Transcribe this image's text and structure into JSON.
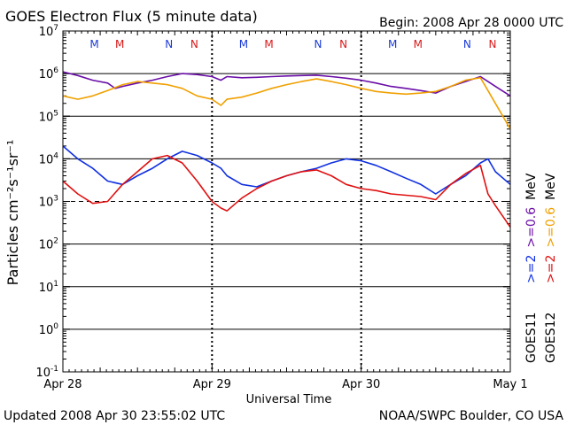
{
  "header": {
    "title": "GOES Electron Flux (5 minute data)",
    "begin": "Begin: 2008 Apr 28 0000 UTC"
  },
  "footer": {
    "updated": "Updated 2008 Apr 30 23:55:02 UTC",
    "credit": "NOAA/SWPC Boulder, CO USA"
  },
  "colors": {
    "goes11_06": "#6a0ea8",
    "goes12_06": "#f0a000",
    "goes11_2": "#1030e0",
    "goes12_2": "#e01010",
    "mn_goes11": "#1a3ad8",
    "mn_goes12": "#d81a1a",
    "axis": "#000000"
  },
  "right_labels": {
    "goes11": "GOES11",
    "goes12": "GOES12",
    "ch_2_prefix": ">=2",
    "ch_06_prefix": ">=0.6",
    "unit": "MeV"
  },
  "chart_data": {
    "type": "line",
    "ylabel": "Particles cm⁻²s⁻¹sr⁻¹",
    "xlabel": "Universal Time",
    "y_scale": "log",
    "ylim": [
      0.1,
      10000000
    ],
    "y_ticks": [
      {
        "base": "10",
        "exp": "-1"
      },
      {
        "base": "10",
        "exp": "0"
      },
      {
        "base": "10",
        "exp": "1"
      },
      {
        "base": "10",
        "exp": "2"
      },
      {
        "base": "10",
        "exp": "3"
      },
      {
        "base": "10",
        "exp": "4"
      },
      {
        "base": "10",
        "exp": "5"
      },
      {
        "base": "10",
        "exp": "6"
      },
      {
        "base": "10",
        "exp": "7"
      }
    ],
    "xlim_days": [
      0,
      3
    ],
    "x_ticks": [
      {
        "day": 0,
        "label": "Apr 28"
      },
      {
        "day": 1,
        "label": "Apr 29"
      },
      {
        "day": 2,
        "label": "Apr 30"
      },
      {
        "day": 3,
        "label": "May 1"
      }
    ],
    "threshold": 1000,
    "mn_markers": [
      {
        "day": 0.33,
        "letter": "M",
        "sat": "goes11"
      },
      {
        "day": 0.5,
        "letter": "M",
        "sat": "goes12"
      },
      {
        "day": 0.83,
        "letter": "N",
        "sat": "goes11"
      },
      {
        "day": 1.0,
        "letter": "N",
        "sat": "goes12"
      },
      {
        "day": 1.33,
        "letter": "M",
        "sat": "goes11"
      },
      {
        "day": 1.5,
        "letter": "M",
        "sat": "goes12"
      },
      {
        "day": 1.83,
        "letter": "N",
        "sat": "goes11"
      },
      {
        "day": 2.0,
        "letter": "N",
        "sat": "goes12"
      },
      {
        "day": 2.33,
        "letter": "M",
        "sat": "goes11"
      },
      {
        "day": 2.5,
        "letter": "M",
        "sat": "goes12"
      },
      {
        "day": 2.83,
        "letter": "N",
        "sat": "goes11"
      },
      {
        "day": 3.0,
        "letter": "N",
        "sat": "goes12"
      }
    ],
    "series": [
      {
        "name": "GOES11 >=0.6 MeV",
        "color_key": "goes11_06",
        "points": [
          [
            0,
            1100000
          ],
          [
            0.1,
            900000
          ],
          [
            0.2,
            700000
          ],
          [
            0.3,
            600000
          ],
          [
            0.35,
            450000
          ],
          [
            0.4,
            500000
          ],
          [
            0.5,
            600000
          ],
          [
            0.6,
            700000
          ],
          [
            0.7,
            850000
          ],
          [
            0.8,
            1000000
          ],
          [
            0.9,
            950000
          ],
          [
            1.0,
            850000
          ],
          [
            1.06,
            700000
          ],
          [
            1.1,
            850000
          ],
          [
            1.2,
            800000
          ],
          [
            1.3,
            820000
          ],
          [
            1.4,
            850000
          ],
          [
            1.5,
            880000
          ],
          [
            1.6,
            900000
          ],
          [
            1.7,
            920000
          ],
          [
            1.8,
            850000
          ],
          [
            1.9,
            780000
          ],
          [
            2.0,
            700000
          ],
          [
            2.1,
            600000
          ],
          [
            2.2,
            500000
          ],
          [
            2.3,
            450000
          ],
          [
            2.4,
            400000
          ],
          [
            2.5,
            350000
          ],
          [
            2.6,
            500000
          ],
          [
            2.7,
            650000
          ],
          [
            2.8,
            850000
          ],
          [
            2.85,
            650000
          ],
          [
            2.9,
            500000
          ],
          [
            3.0,
            300000
          ]
        ]
      },
      {
        "name": "GOES12 >=0.6 MeV",
        "color_key": "goes12_06",
        "points": [
          [
            0,
            300000
          ],
          [
            0.1,
            250000
          ],
          [
            0.2,
            300000
          ],
          [
            0.3,
            400000
          ],
          [
            0.4,
            550000
          ],
          [
            0.5,
            650000
          ],
          [
            0.6,
            600000
          ],
          [
            0.7,
            550000
          ],
          [
            0.8,
            450000
          ],
          [
            0.9,
            300000
          ],
          [
            1.0,
            250000
          ],
          [
            1.06,
            180000
          ],
          [
            1.1,
            250000
          ],
          [
            1.2,
            280000
          ],
          [
            1.3,
            350000
          ],
          [
            1.4,
            450000
          ],
          [
            1.5,
            550000
          ],
          [
            1.6,
            650000
          ],
          [
            1.7,
            750000
          ],
          [
            1.8,
            650000
          ],
          [
            1.9,
            550000
          ],
          [
            2.0,
            450000
          ],
          [
            2.1,
            380000
          ],
          [
            2.2,
            350000
          ],
          [
            2.3,
            330000
          ],
          [
            2.4,
            350000
          ],
          [
            2.5,
            380000
          ],
          [
            2.6,
            500000
          ],
          [
            2.7,
            700000
          ],
          [
            2.8,
            800000
          ],
          [
            2.85,
            400000
          ],
          [
            2.9,
            200000
          ],
          [
            3.0,
            50000
          ]
        ]
      },
      {
        "name": "GOES11 >=2 MeV",
        "color_key": "goes11_2",
        "points": [
          [
            0,
            20000
          ],
          [
            0.1,
            10000
          ],
          [
            0.2,
            6000
          ],
          [
            0.3,
            3000
          ],
          [
            0.4,
            2500
          ],
          [
            0.5,
            4000
          ],
          [
            0.6,
            6000
          ],
          [
            0.7,
            10000
          ],
          [
            0.8,
            15000
          ],
          [
            0.9,
            12000
          ],
          [
            1.0,
            8000
          ],
          [
            1.06,
            6000
          ],
          [
            1.1,
            4000
          ],
          [
            1.2,
            2500
          ],
          [
            1.3,
            2200
          ],
          [
            1.4,
            3000
          ],
          [
            1.5,
            4000
          ],
          [
            1.6,
            5000
          ],
          [
            1.7,
            6000
          ],
          [
            1.8,
            8000
          ],
          [
            1.9,
            10000
          ],
          [
            2.0,
            9000
          ],
          [
            2.1,
            7000
          ],
          [
            2.2,
            5000
          ],
          [
            2.3,
            3500
          ],
          [
            2.4,
            2500
          ],
          [
            2.5,
            1500
          ],
          [
            2.6,
            2500
          ],
          [
            2.7,
            4000
          ],
          [
            2.8,
            8000
          ],
          [
            2.85,
            10000
          ],
          [
            2.9,
            5000
          ],
          [
            3.0,
            2500
          ]
        ]
      },
      {
        "name": "GOES12 >=2 MeV",
        "color_key": "goes12_2",
        "points": [
          [
            0,
            3000
          ],
          [
            0.1,
            1500
          ],
          [
            0.2,
            900
          ],
          [
            0.3,
            1000
          ],
          [
            0.4,
            2500
          ],
          [
            0.5,
            5000
          ],
          [
            0.6,
            10000
          ],
          [
            0.7,
            12000
          ],
          [
            0.8,
            8000
          ],
          [
            0.9,
            3000
          ],
          [
            1.0,
            1000
          ],
          [
            1.06,
            700
          ],
          [
            1.1,
            600
          ],
          [
            1.2,
            1200
          ],
          [
            1.3,
            2000
          ],
          [
            1.4,
            3000
          ],
          [
            1.5,
            4000
          ],
          [
            1.6,
            5000
          ],
          [
            1.7,
            5500
          ],
          [
            1.8,
            4000
          ],
          [
            1.9,
            2500
          ],
          [
            2.0,
            2000
          ],
          [
            2.1,
            1800
          ],
          [
            2.2,
            1500
          ],
          [
            2.3,
            1400
          ],
          [
            2.4,
            1300
          ],
          [
            2.5,
            1100
          ],
          [
            2.6,
            2500
          ],
          [
            2.7,
            4500
          ],
          [
            2.8,
            7000
          ],
          [
            2.85,
            1500
          ],
          [
            2.9,
            800
          ],
          [
            3.0,
            250
          ]
        ]
      }
    ]
  }
}
